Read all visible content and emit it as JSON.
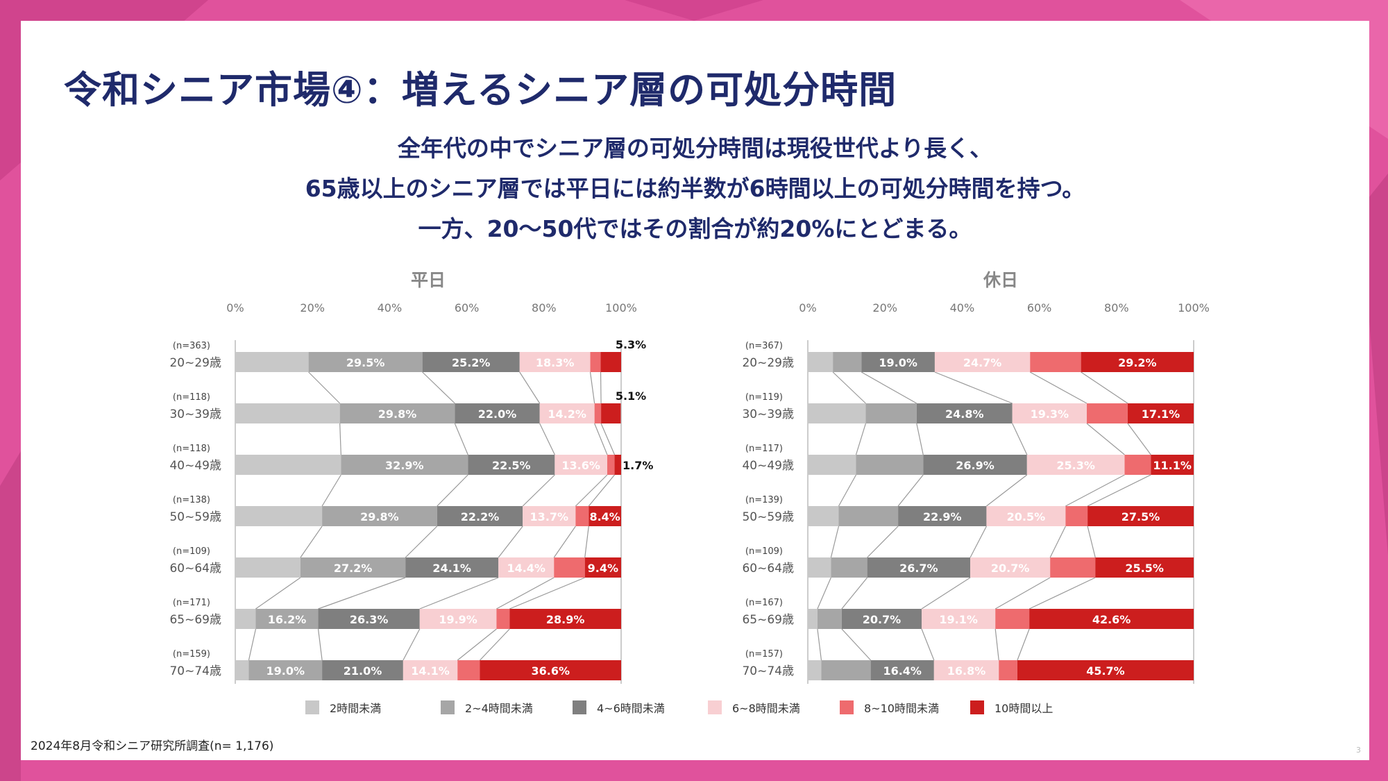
{
  "slide": {
    "title": "令和シニア市場④：増えるシニア層の可処分時間",
    "subtitle_lines": [
      "全年代の中でシニア層の可処分時間は現役世代より長く、",
      "65歳以上のシニア層では平日には約半数が6時間以上の可処分時間を持つ。",
      "一方、20～50代ではその割合が約20%にとどまる。"
    ],
    "footnote": "2024年8月令和シニア研究所調査(n= 1,176)",
    "page_number": "3"
  },
  "legend": [
    {
      "name": "2時間未満",
      "color": "#c8c8c8"
    },
    {
      "name": "2~4時間未満",
      "color": "#a6a6a6"
    },
    {
      "name": "4~6時間未満",
      "color": "#7f7f7f"
    },
    {
      "name": "6~8時間未満",
      "color": "#f8cfd2"
    },
    {
      "name": "8~10時間未満",
      "color": "#ee6b6e"
    },
    {
      "name": "10時間以上",
      "color": "#cc1e1e"
    }
  ],
  "chart_data": [
    {
      "type": "bar",
      "orientation": "horizontal",
      "stacked": "100%",
      "title": "平日",
      "xlim": [
        0,
        100
      ],
      "x_ticks": [
        "0%",
        "20%",
        "40%",
        "60%",
        "80%",
        "100%"
      ],
      "categories": [
        "20~29歳",
        "30~39歳",
        "40~49歳",
        "50~59歳",
        "60~64歳",
        "65~69歳",
        "70~74歳"
      ],
      "sample_sizes": [
        "(n=363)",
        "(n=118)",
        "(n=118)",
        "(n=138)",
        "(n=109)",
        "(n=171)",
        "(n=159)"
      ],
      "series": [
        {
          "name": "2時間未満",
          "values": [
            19.0,
            27.1,
            27.4,
            22.5,
            16.9,
            5.3,
            3.5
          ]
        },
        {
          "name": "2~4時間未満",
          "values": [
            29.5,
            29.8,
            32.9,
            29.8,
            27.2,
            16.2,
            19.0
          ]
        },
        {
          "name": "4~6時間未満",
          "values": [
            25.2,
            22.0,
            22.5,
            22.2,
            24.1,
            26.3,
            21.0
          ]
        },
        {
          "name": "6~8時間未満",
          "values": [
            18.3,
            14.2,
            13.6,
            13.7,
            14.4,
            19.9,
            14.1
          ]
        },
        {
          "name": "8~10時間未満",
          "values": [
            2.7,
            1.7,
            1.9,
            3.4,
            8.0,
            3.4,
            5.8
          ]
        },
        {
          "name": "10時間以上",
          "values": [
            5.3,
            5.1,
            1.7,
            8.4,
            9.4,
            28.9,
            36.6
          ]
        }
      ],
      "labels": [
        [
          "",
          "29.5%",
          "25.2%",
          "18.3%",
          "",
          "5.3%"
        ],
        [
          "",
          "29.8%",
          "22.0%",
          "14.2%",
          "",
          "5.1%"
        ],
        [
          "",
          "32.9%",
          "22.5%",
          "13.6%",
          "",
          "1.7%"
        ],
        [
          "",
          "29.8%",
          "22.2%",
          "13.7%",
          "",
          "8.4%"
        ],
        [
          "",
          "27.2%",
          "24.1%",
          "14.4%",
          "",
          "9.4%"
        ],
        [
          "",
          "16.2%",
          "26.3%",
          "19.9%",
          "",
          "28.9%"
        ],
        [
          "",
          "19.0%",
          "21.0%",
          "14.1%",
          "",
          "36.6%"
        ]
      ],
      "outside_label_rows": [
        0,
        1,
        2
      ]
    },
    {
      "type": "bar",
      "orientation": "horizontal",
      "stacked": "100%",
      "title": "休日",
      "xlim": [
        0,
        100
      ],
      "x_ticks": [
        "0%",
        "20%",
        "40%",
        "60%",
        "80%",
        "100%"
      ],
      "categories": [
        "20~29歳",
        "30~39歳",
        "40~49歳",
        "50~59歳",
        "60~64歳",
        "65~69歳",
        "70~74歳"
      ],
      "sample_sizes": [
        "(n=367)",
        "(n=119)",
        "(n=117)",
        "(n=139)",
        "(n=109)",
        "(n=167)",
        "(n=157)"
      ],
      "series": [
        {
          "name": "2時間未満",
          "values": [
            6.5,
            15.0,
            12.5,
            8.0,
            6.0,
            2.5,
            3.5
          ]
        },
        {
          "name": "2~4時間未満",
          "values": [
            7.4,
            13.2,
            17.4,
            15.4,
            9.4,
            6.3,
            12.8
          ]
        },
        {
          "name": "4~6時間未満",
          "values": [
            19.0,
            24.8,
            26.9,
            22.9,
            26.7,
            20.7,
            16.4
          ]
        },
        {
          "name": "6~8時間未満",
          "values": [
            24.7,
            19.3,
            25.3,
            20.5,
            20.7,
            19.1,
            16.8
          ]
        },
        {
          "name": "8~10時間未満",
          "values": [
            13.2,
            10.6,
            6.8,
            5.7,
            11.7,
            8.8,
            4.8
          ]
        },
        {
          "name": "10時間以上",
          "values": [
            29.2,
            17.1,
            11.1,
            27.5,
            25.5,
            42.6,
            45.7
          ]
        }
      ],
      "labels": [
        [
          "",
          "",
          "19.0%",
          "24.7%",
          "",
          "29.2%"
        ],
        [
          "",
          "",
          "24.8%",
          "19.3%",
          "",
          "17.1%"
        ],
        [
          "",
          "",
          "26.9%",
          "25.3%",
          "",
          "11.1%"
        ],
        [
          "",
          "",
          "22.9%",
          "20.5%",
          "",
          "27.5%"
        ],
        [
          "",
          "",
          "26.7%",
          "20.7%",
          "",
          "25.5%"
        ],
        [
          "",
          "",
          "20.7%",
          "19.1%",
          "",
          "42.6%"
        ],
        [
          "",
          "",
          "16.4%",
          "16.8%",
          "",
          "45.7%"
        ]
      ],
      "outside_label_rows": []
    }
  ]
}
